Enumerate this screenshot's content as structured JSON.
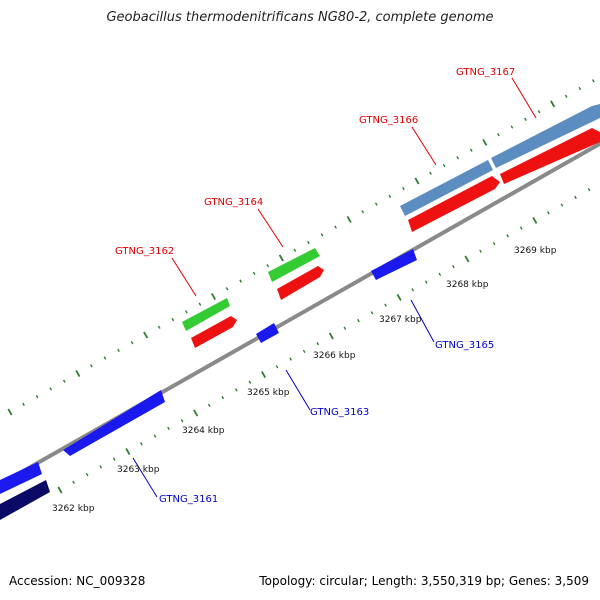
{
  "title": "Geobacillus thermodenitrificans NG80-2, complete genome",
  "footer": {
    "accession": "Accession: NC_009328",
    "topology": "Topology: circular; Length: 3,550,319 bp; Genes: 3,509"
  },
  "colors": {
    "backbone": "#8a8a8a",
    "tick": "#2e7d32",
    "forward_label": "#dd0000",
    "reverse_label": "#0000cc",
    "green": "#33cc33",
    "red": "#ee1111",
    "steelblue": "#5b8dc0",
    "blue": "#1a1aee",
    "navy": "#0a0a66"
  },
  "scale_ticks": [
    "3262 kbp",
    "3263 kbp",
    "3264 kbp",
    "3265 kbp",
    "3266 kbp",
    "3267 kbp",
    "3268 kbp",
    "3269 kbp"
  ],
  "features": [
    {
      "name": "GTNG_3161",
      "strand": "reverse",
      "color": "blue",
      "labeled": true
    },
    {
      "name": "GTNG_3162",
      "strand": "forward",
      "color": "green",
      "labeled": true
    },
    {
      "name": "GTNG_3162b",
      "strand": "forward",
      "color": "red",
      "labeled": false
    },
    {
      "name": "GTNG_3163",
      "strand": "reverse",
      "color": "blue",
      "labeled": true
    },
    {
      "name": "GTNG_3164",
      "strand": "forward",
      "color": "green",
      "labeled": true
    },
    {
      "name": "GTNG_3164b",
      "strand": "forward",
      "color": "red",
      "labeled": false
    },
    {
      "name": "GTNG_3165",
      "strand": "reverse",
      "color": "blue",
      "labeled": true
    },
    {
      "name": "GTNG_3166",
      "strand": "forward",
      "color": "steelblue",
      "labeled": true
    },
    {
      "name": "GTNG_3166b",
      "strand": "forward",
      "color": "red",
      "labeled": false
    },
    {
      "name": "GTNG_3167",
      "strand": "forward",
      "color": "steelblue",
      "labeled": true
    },
    {
      "name": "GTNG_3167b",
      "strand": "forward",
      "color": "red",
      "labeled": false
    }
  ],
  "gene_labels": {
    "g3161": "GTNG_3161",
    "g3162": "GTNG_3162",
    "g3163": "GTNG_3163",
    "g3164": "GTNG_3164",
    "g3165": "GTNG_3165",
    "g3166": "GTNG_3166",
    "g3167": "GTNG_3167"
  }
}
